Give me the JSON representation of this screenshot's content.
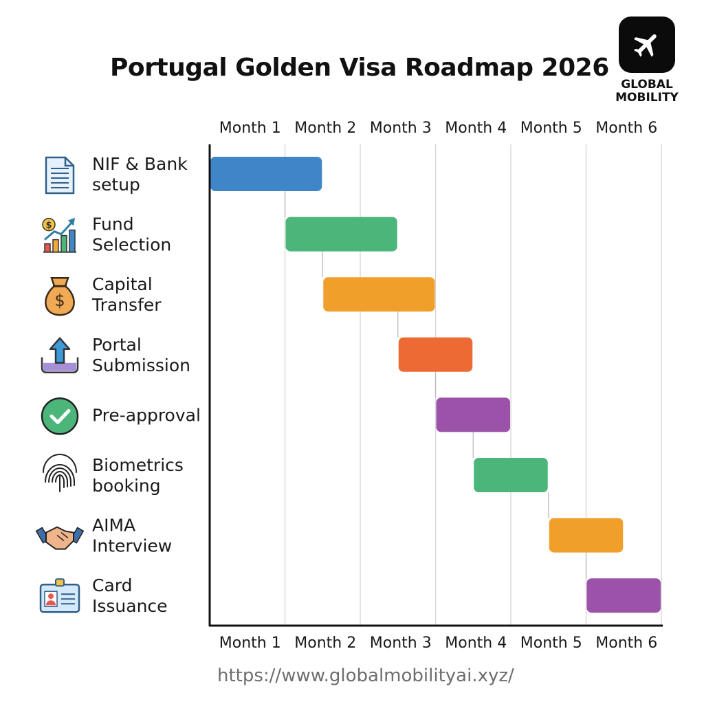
{
  "header": {
    "title": "Portugal Golden Visa Roadmap 2026",
    "logo_line1": "GLOBAL",
    "logo_line2": "MOBILITY",
    "logo_icon": "airplane-icon"
  },
  "footer": {
    "url": "https://www.globalmobilityai.xyz/"
  },
  "chart_data": {
    "type": "gantt",
    "title": "Portugal Golden Visa Roadmap 2026",
    "columns": [
      "Month 1",
      "Month 2",
      "Month 3",
      "Month 4",
      "Month 5",
      "Month 6"
    ],
    "x_unit": "month",
    "xlim": [
      0,
      6
    ],
    "grid": true,
    "tasks": [
      {
        "label_lines": [
          "NIF & Bank",
          "setup"
        ],
        "start": 0,
        "end": 1.5,
        "color": "#3E86C8",
        "icon": "document-icon"
      },
      {
        "label_lines": [
          "Fund",
          "Selection"
        ],
        "start": 1,
        "end": 2.5,
        "color": "#4BB57A",
        "icon": "growth-chart-icon"
      },
      {
        "label_lines": [
          "Capital",
          "Transfer"
        ],
        "start": 1.5,
        "end": 3,
        "color": "#F19F2B",
        "icon": "money-bag-icon"
      },
      {
        "label_lines": [
          "Portal",
          "Submission"
        ],
        "start": 2.5,
        "end": 3.5,
        "color": "#EE6A35",
        "icon": "upload-icon"
      },
      {
        "label_lines": [
          "Pre-approval"
        ],
        "start": 3,
        "end": 4,
        "color": "#9B52A8",
        "icon": "checkmark-circle-icon"
      },
      {
        "label_lines": [
          "Biometrics",
          "booking"
        ],
        "start": 3.5,
        "end": 4.5,
        "color": "#4BB57A",
        "icon": "fingerprint-icon"
      },
      {
        "label_lines": [
          "AIMA",
          "Interview"
        ],
        "start": 4.5,
        "end": 5.5,
        "color": "#F19F2B",
        "icon": "handshake-icon"
      },
      {
        "label_lines": [
          "Card",
          "Issuance"
        ],
        "start": 5,
        "end": 6,
        "color": "#9B52A8",
        "icon": "id-card-icon"
      }
    ]
  }
}
